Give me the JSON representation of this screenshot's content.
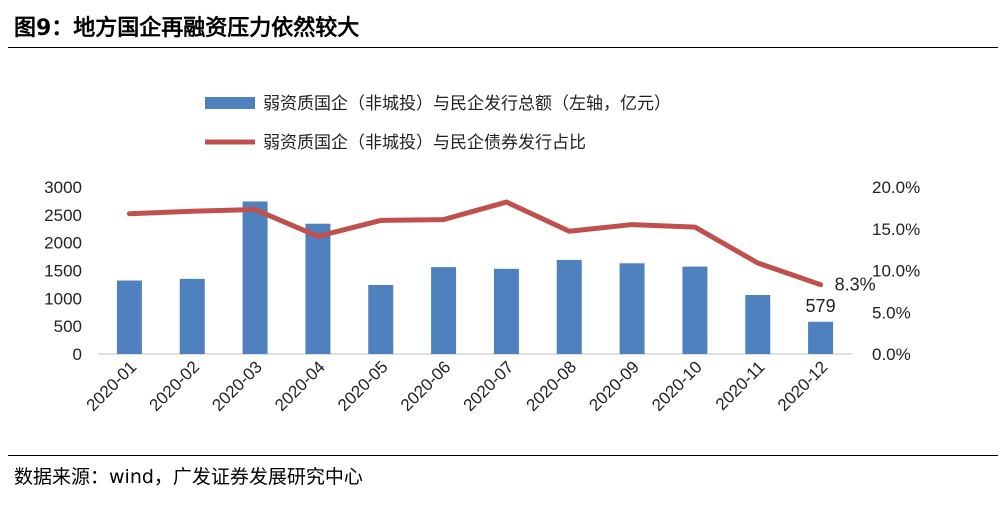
{
  "title": "图9：地方国企再融资压力依然较大",
  "source": "数据来源：wind，广发证券发展研究中心",
  "colors": {
    "bar": "#4E81BD",
    "line": "#C0504D"
  },
  "chart_data": {
    "type": "bar",
    "categories": [
      "2020-01",
      "2020-02",
      "2020-03",
      "2020-04",
      "2020-05",
      "2020-06",
      "2020-07",
      "2020-08",
      "2020-09",
      "2020-10",
      "2020-11",
      "2020-12"
    ],
    "series": [
      {
        "name": "弱资质国企（非城投）与民企发行总额（左轴，亿元）",
        "type": "bar",
        "axis": "left",
        "values": [
          1320,
          1350,
          2740,
          2340,
          1240,
          1560,
          1530,
          1690,
          1630,
          1570,
          1060,
          579
        ]
      },
      {
        "name": "弱资质国企（非城投）与民企债券发行占比",
        "type": "line",
        "axis": "right",
        "values": [
          0.168,
          0.171,
          0.173,
          0.141,
          0.16,
          0.161,
          0.182,
          0.147,
          0.155,
          0.152,
          0.109,
          0.083
        ]
      }
    ],
    "y_left": {
      "min": 0,
      "max": 3000,
      "ticks": [
        "0",
        "500",
        "1000",
        "1500",
        "2000",
        "2500",
        "3000"
      ]
    },
    "y_right": {
      "min": 0,
      "max": 0.2,
      "ticks": [
        "0.0%",
        "5.0%",
        "10.0%",
        "15.0%",
        "20.0%"
      ]
    },
    "data_labels": [
      {
        "series": 0,
        "index": 11,
        "text": "579"
      },
      {
        "series": 1,
        "index": 11,
        "text": "8.3%"
      }
    ],
    "grid": false,
    "legend": "top"
  }
}
